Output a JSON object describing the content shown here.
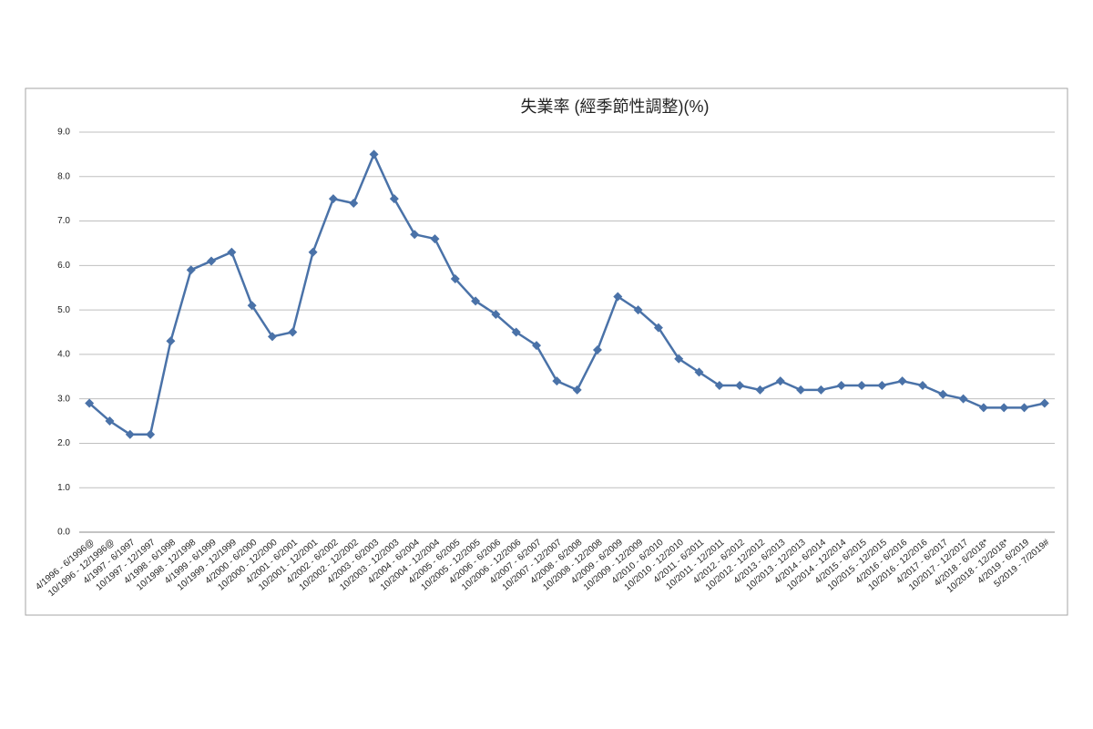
{
  "chart_data": {
    "type": "line",
    "title": "失業率 (經季節性調整)(%)",
    "categories": [
      "4/1996 - 6/1996@",
      "10/1996 - 12/1996@",
      "4/1997 - 6/1997",
      "10/1997 - 12/1997",
      "4/1998 - 6/1998",
      "10/1998 - 12/1998",
      "4/1999 - 6/1999",
      "10/1999 - 12/1999",
      "4/2000 - 6/2000",
      "10/2000 - 12/2000",
      "4/2001 - 6/2001",
      "10/2001 - 12/2001",
      "4/2002 - 6/2002",
      "10/2002 - 12/2002",
      "4/2003 - 6/2003",
      "10/2003 - 12/2003",
      "4/2004 - 6/2004",
      "10/2004 - 12/2004",
      "4/2005 - 6/2005",
      "10/2005 - 12/2005",
      "4/2006 - 6/2006",
      "10/2006 - 12/2006",
      "4/2007 - 6/2007",
      "10/2007 - 12/2007",
      "4/2008 - 6/2008",
      "10/2008 - 12/2008",
      "4/2009 - 6/2009",
      "10/2009 - 12/2009",
      "4/2010 - 6/2010",
      "10/2010 - 12/2010",
      "4/2011 - 6/2011",
      "10/2011 - 12/2011",
      "4/2012 - 6/2012",
      "10/2012 - 12/2012",
      "4/2013 - 6/2013",
      "10/2013 - 12/2013",
      "4/2014 - 6/2014",
      "10/2014 - 12/2014",
      "4/2015 - 6/2015",
      "10/2015 - 12/2015",
      "4/2016 - 6/2016",
      "10/2016 - 12/2016",
      "4/2017 - 6/2017",
      "10/2017 - 12/2017",
      "4/2018 - 6/2018*",
      "10/2018 - 12/2018*",
      "4/2019 - 6/2019",
      "5/2019 - 7/2019#"
    ],
    "values": [
      2.9,
      2.5,
      2.2,
      2.2,
      4.3,
      5.9,
      6.1,
      6.3,
      5.1,
      4.4,
      4.5,
      6.3,
      7.5,
      7.4,
      8.5,
      7.5,
      6.7,
      6.6,
      5.7,
      5.2,
      4.9,
      4.5,
      4.2,
      3.4,
      3.2,
      4.1,
      5.3,
      5.0,
      4.6,
      3.9,
      3.6,
      3.3,
      3.3,
      3.2,
      3.4,
      3.2,
      3.2,
      3.3,
      3.3,
      3.3,
      3.4,
      3.3,
      3.1,
      3.0,
      2.8,
      2.8,
      2.8,
      2.9
    ],
    "color": "#4a72a8",
    "ylim": [
      0,
      9
    ],
    "yticks": [
      {
        "value": 0,
        "label": "0.0"
      },
      {
        "value": 1,
        "label": "1.0"
      },
      {
        "value": 2,
        "label": "2.0"
      },
      {
        "value": 3,
        "label": "3.0"
      },
      {
        "value": 4,
        "label": "4.0"
      },
      {
        "value": 5,
        "label": "5.0"
      },
      {
        "value": 6,
        "label": "6.0"
      },
      {
        "value": 7,
        "label": "7.0"
      },
      {
        "value": 8,
        "label": "8.0"
      },
      {
        "value": 9,
        "label": "9.0"
      }
    ],
    "grid": true
  }
}
